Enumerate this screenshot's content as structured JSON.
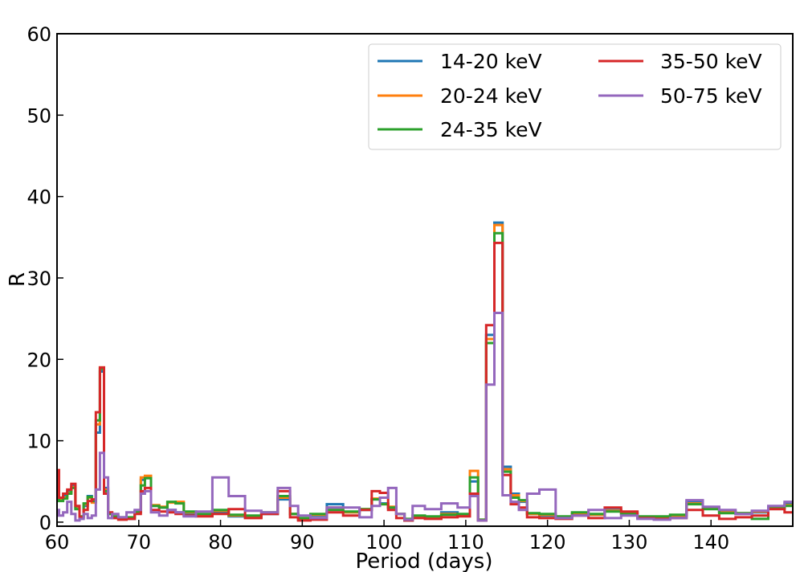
{
  "chart_data": {
    "type": "line",
    "title": "",
    "xlabel": "Period (days)",
    "ylabel": "R",
    "xlim": [
      60,
      150
    ],
    "ylim": [
      -0.5,
      60
    ],
    "xticks": [
      60,
      70,
      80,
      90,
      100,
      110,
      120,
      130,
      140
    ],
    "yticks": [
      0,
      10,
      20,
      30,
      40,
      50,
      60
    ],
    "grid": false,
    "legend": {
      "placement": "top-right",
      "columns": 2
    },
    "step_style": "steps-mid",
    "series": [
      {
        "name": "14-20 keV",
        "color": "#1f77b4",
        "x": [
          60,
          60.5,
          61,
          61.5,
          62,
          62.5,
          63,
          63.5,
          64,
          64.5,
          65,
          65.5,
          66,
          66.5,
          67,
          68,
          69,
          70,
          70.5,
          71,
          72,
          73,
          74,
          75,
          76,
          78,
          80,
          82,
          84,
          86,
          88,
          89,
          90,
          92,
          94,
          96,
          98,
          99,
          100,
          101,
          102,
          103,
          104,
          106,
          108,
          110,
          111,
          112,
          113,
          114,
          115,
          116,
          117,
          118,
          120,
          122,
          124,
          126,
          128,
          130,
          132,
          134,
          136,
          138,
          140,
          142,
          144,
          146,
          148,
          150
        ],
        "y": [
          6.2,
          2.8,
          3.2,
          3.8,
          4.5,
          1.8,
          0.5,
          2.0,
          3.2,
          2.5,
          11.0,
          18.5,
          4.2,
          1.0,
          0.6,
          0.5,
          0.4,
          1.2,
          5.2,
          5.5,
          2.0,
          1.8,
          1.5,
          1.2,
          1.0,
          0.8,
          1.2,
          0.7,
          0.6,
          1.0,
          2.8,
          1.0,
          0.3,
          0.8,
          2.2,
          1.2,
          1.5,
          2.8,
          2.3,
          1.8,
          1.0,
          0.2,
          0.6,
          0.5,
          1.2,
          0.8,
          5.0,
          0.2,
          23.0,
          36.8,
          6.8,
          3.5,
          2.5,
          1.0,
          0.8,
          0.5,
          1.0,
          0.9,
          1.5,
          1.2,
          0.6,
          0.5,
          0.7,
          2.5,
          1.8,
          1.3,
          1.0,
          1.2,
          1.9,
          2.3
        ]
      },
      {
        "name": "20-24 keV",
        "color": "#ff7f0e",
        "x": [
          60,
          60.5,
          61,
          61.5,
          62,
          62.5,
          63,
          63.5,
          64,
          64.5,
          65,
          65.5,
          66,
          66.5,
          67,
          68,
          69,
          70,
          70.5,
          71,
          72,
          73,
          74,
          75,
          76,
          78,
          80,
          82,
          84,
          86,
          88,
          89,
          90,
          92,
          94,
          96,
          98,
          99,
          100,
          101,
          102,
          103,
          104,
          106,
          108,
          110,
          111,
          112,
          113,
          114,
          115,
          116,
          117,
          118,
          120,
          122,
          124,
          126,
          128,
          130,
          132,
          134,
          136,
          138,
          140,
          142,
          144,
          146,
          148,
          150
        ],
        "y": [
          6.0,
          2.7,
          3.0,
          3.6,
          4.3,
          1.7,
          0.6,
          2.2,
          3.0,
          2.4,
          12.0,
          19.0,
          4.0,
          1.0,
          0.6,
          0.5,
          0.5,
          1.2,
          5.5,
          5.7,
          2.1,
          1.9,
          2.4,
          2.5,
          1.2,
          0.9,
          1.4,
          0.8,
          0.7,
          1.1,
          3.0,
          1.0,
          0.4,
          0.9,
          1.8,
          1.2,
          1.6,
          2.9,
          2.2,
          1.9,
          1.0,
          0.3,
          0.7,
          0.6,
          1.0,
          0.9,
          6.3,
          0.3,
          22.5,
          36.5,
          6.5,
          3.3,
          2.6,
          1.0,
          0.9,
          0.6,
          1.1,
          0.9,
          1.4,
          1.1,
          0.6,
          0.6,
          0.8,
          2.3,
          1.7,
          1.2,
          1.1,
          1.3,
          1.8,
          2.1
        ]
      },
      {
        "name": "24-35 keV",
        "color": "#2ca02c",
        "x": [
          60,
          60.5,
          61,
          61.5,
          62,
          62.5,
          63,
          63.5,
          64,
          64.5,
          65,
          65.5,
          66,
          66.5,
          67,
          68,
          69,
          70,
          70.5,
          71,
          72,
          73,
          74,
          75,
          76,
          78,
          80,
          82,
          84,
          86,
          88,
          89,
          90,
          92,
          94,
          96,
          98,
          99,
          100,
          101,
          102,
          103,
          104,
          106,
          108,
          110,
          111,
          112,
          113,
          114,
          115,
          116,
          117,
          118,
          120,
          122,
          124,
          126,
          128,
          130,
          132,
          134,
          136,
          138,
          140,
          142,
          144,
          146,
          148,
          150
        ],
        "y": [
          5.8,
          2.6,
          2.9,
          3.5,
          4.2,
          1.6,
          0.7,
          2.3,
          3.1,
          2.6,
          12.5,
          18.8,
          3.8,
          1.0,
          0.7,
          0.6,
          0.6,
          1.3,
          4.5,
          5.4,
          2.0,
          1.8,
          2.5,
          2.3,
          1.3,
          1.0,
          1.5,
          0.9,
          0.8,
          1.2,
          3.2,
          1.0,
          0.5,
          1.0,
          1.5,
          1.3,
          1.6,
          2.8,
          2.2,
          1.8,
          1.0,
          0.4,
          0.8,
          0.7,
          0.9,
          1.0,
          5.5,
          0.3,
          22.0,
          35.5,
          6.2,
          3.0,
          2.7,
          1.1,
          1.0,
          0.7,
          1.2,
          1.0,
          1.3,
          1.0,
          0.7,
          0.7,
          0.9,
          2.2,
          1.6,
          1.1,
          1.1,
          0.4,
          1.7,
          2.0
        ]
      },
      {
        "name": "35-50 keV",
        "color": "#d62728",
        "x": [
          60,
          60.5,
          61,
          61.5,
          62,
          62.5,
          63,
          63.5,
          64,
          64.5,
          65,
          65.5,
          66,
          66.5,
          67,
          68,
          69,
          70,
          70.5,
          71,
          72,
          73,
          74,
          75,
          76,
          78,
          80,
          82,
          84,
          86,
          88,
          89,
          90,
          92,
          94,
          96,
          98,
          99,
          100,
          101,
          102,
          103,
          104,
          106,
          108,
          110,
          111,
          112,
          113,
          114,
          115,
          116,
          117,
          118,
          120,
          122,
          124,
          126,
          128,
          130,
          132,
          134,
          136,
          138,
          140,
          142,
          144,
          146,
          148,
          150
        ],
        "y": [
          6.4,
          3.0,
          3.5,
          4.0,
          4.7,
          2.0,
          0.6,
          1.5,
          2.6,
          2.8,
          13.5,
          19.0,
          3.5,
          1.2,
          0.5,
          0.3,
          0.4,
          1.0,
          3.8,
          4.2,
          1.5,
          1.3,
          1.2,
          1.0,
          0.8,
          0.7,
          1.0,
          1.6,
          0.5,
          1.0,
          3.8,
          0.6,
          0.2,
          0.3,
          1.2,
          0.8,
          1.5,
          3.8,
          3.6,
          1.5,
          0.5,
          0.2,
          0.5,
          0.4,
          0.6,
          0.7,
          3.5,
          0.2,
          24.2,
          34.3,
          5.8,
          2.2,
          1.8,
          0.6,
          0.5,
          0.4,
          0.8,
          0.5,
          1.8,
          1.3,
          0.5,
          0.4,
          0.5,
          1.5,
          0.8,
          0.4,
          0.6,
          0.8,
          1.6,
          1.2
        ]
      },
      {
        "name": "50-75 keV",
        "color": "#9467bd",
        "x": [
          60,
          60.5,
          61,
          61.5,
          62,
          62.5,
          63,
          63.5,
          64,
          64.5,
          65,
          65.5,
          66,
          66.5,
          67,
          68,
          69,
          70,
          70.5,
          71,
          72,
          73,
          74,
          75,
          76,
          78,
          80,
          82,
          84,
          86,
          88,
          89,
          90,
          92,
          94,
          96,
          98,
          99,
          100,
          101,
          102,
          103,
          104,
          106,
          108,
          110,
          111,
          112,
          113,
          114,
          115,
          116,
          117,
          118,
          120,
          122,
          124,
          126,
          128,
          130,
          132,
          134,
          136,
          138,
          140,
          142,
          144,
          146,
          148,
          150
        ],
        "y": [
          1.5,
          0.8,
          1.2,
          2.5,
          1.0,
          0.2,
          0.4,
          1.0,
          0.5,
          0.8,
          4.0,
          8.5,
          5.5,
          0.5,
          1.0,
          0.6,
          1.2,
          1.5,
          3.5,
          3.8,
          1.2,
          0.8,
          1.5,
          1.2,
          0.7,
          1.3,
          5.5,
          3.2,
          1.4,
          1.2,
          4.2,
          2.0,
          0.8,
          0.5,
          1.8,
          1.8,
          0.6,
          2.0,
          3.0,
          4.2,
          1.0,
          0.3,
          2.0,
          1.6,
          2.3,
          1.8,
          3.2,
          0.2,
          16.9,
          25.7,
          3.3,
          2.5,
          1.5,
          3.5,
          4.0,
          0.5,
          0.8,
          1.5,
          0.5,
          0.8,
          0.4,
          0.3,
          0.5,
          2.7,
          1.9,
          1.5,
          1.0,
          1.4,
          2.0,
          2.5
        ]
      }
    ]
  }
}
